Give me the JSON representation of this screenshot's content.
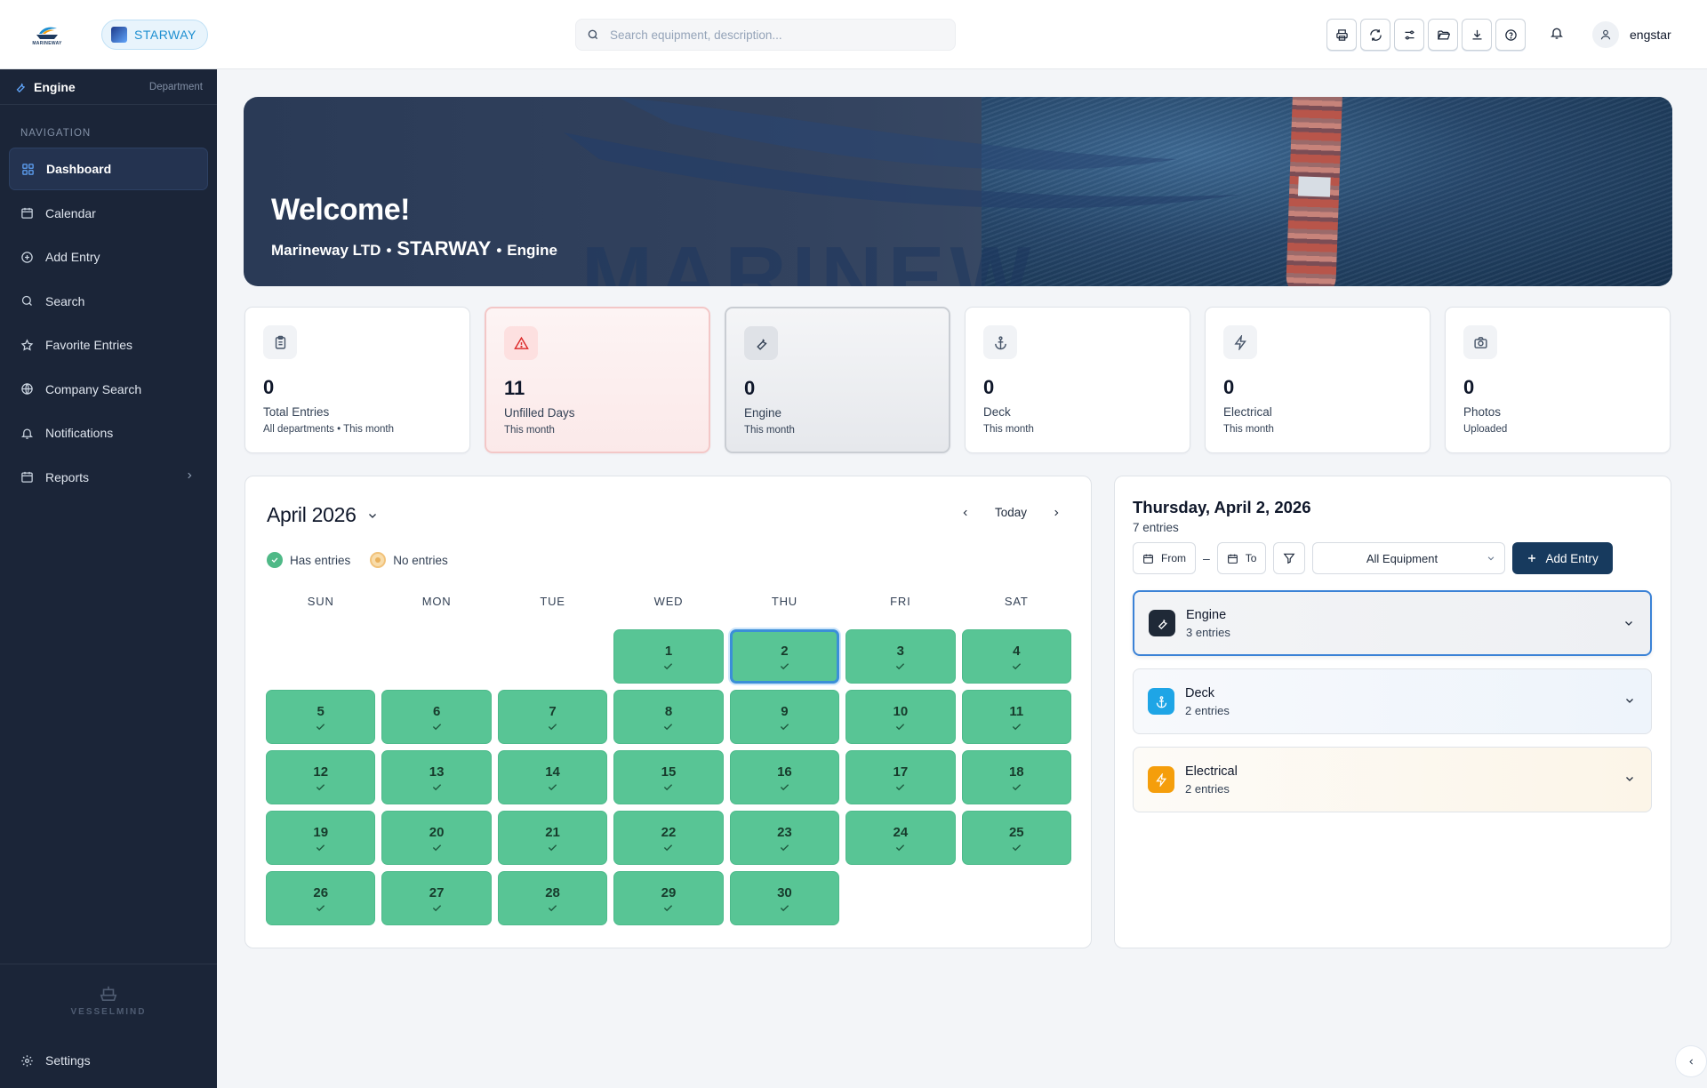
{
  "header": {
    "logo_text": "MARINEWAY",
    "vessel_chip": "STARWAY",
    "search_placeholder": "Search equipment, description...",
    "toolbar": [
      "printer-icon",
      "refresh-icon",
      "sliders-icon",
      "folder-open-icon",
      "download-icon",
      "help-icon"
    ],
    "username": "engstar"
  },
  "sidebar": {
    "department": "Engine",
    "department_label": "Department",
    "nav_label": "NAVIGATION",
    "items": [
      {
        "label": "Dashboard",
        "icon": "grid-icon",
        "active": true
      },
      {
        "label": "Calendar",
        "icon": "calendar-icon"
      },
      {
        "label": "Add Entry",
        "icon": "plus-circle-icon"
      },
      {
        "label": "Search",
        "icon": "search-icon"
      },
      {
        "label": "Favorite Entries",
        "icon": "star-icon"
      },
      {
        "label": "Company Search",
        "icon": "globe-icon"
      },
      {
        "label": "Notifications",
        "icon": "bell-icon"
      },
      {
        "label": "Reports",
        "icon": "calendar-icon",
        "has_submenu": true
      }
    ],
    "brand": "VESSELMIND",
    "settings_label": "Settings"
  },
  "hero": {
    "title": "Welcome!",
    "company": "Marineway LTD",
    "vessel": "STARWAY",
    "department": "Engine",
    "watermark": "MARINEW"
  },
  "stats": [
    {
      "value": "0",
      "label": "Total Entries",
      "sub": "All departments • This month",
      "icon": "clipboard-icon"
    },
    {
      "value": "11",
      "label": "Unfilled Days",
      "sub": "This month",
      "icon": "alert-triangle-icon"
    },
    {
      "value": "0",
      "label": "Engine",
      "sub": "This month",
      "icon": "wrench-icon"
    },
    {
      "value": "0",
      "label": "Deck",
      "sub": "This month",
      "icon": "anchor-icon"
    },
    {
      "value": "0",
      "label": "Electrical",
      "sub": "This month",
      "icon": "zap-icon"
    },
    {
      "value": "0",
      "label": "Photos",
      "sub": "Uploaded",
      "icon": "camera-icon"
    }
  ],
  "calendar": {
    "month_label": "April 2026",
    "today_label": "Today",
    "legend_has": "Has entries",
    "legend_none": "No entries",
    "weekdays": [
      "SUN",
      "MON",
      "TUE",
      "WED",
      "THU",
      "FRI",
      "SAT"
    ],
    "first_weekday_offset": 3,
    "days": [
      "1",
      "2",
      "3",
      "4",
      "5",
      "6",
      "7",
      "8",
      "9",
      "10",
      "11",
      "12",
      "13",
      "14",
      "15",
      "16",
      "17",
      "18",
      "19",
      "20",
      "21",
      "22",
      "23",
      "24",
      "25",
      "26",
      "27",
      "28",
      "29",
      "30"
    ],
    "selected_day": "2"
  },
  "detail": {
    "date": "Thursday, April 2, 2026",
    "count": "7 entries",
    "from_label": "From",
    "to_label": "To",
    "dash": "–",
    "equipment_filter": "All Equipment",
    "add_entry": "Add Entry",
    "groups": [
      {
        "title": "Engine",
        "count": "3 entries",
        "icon": "wrench-icon",
        "color": "#1f2937"
      },
      {
        "title": "Deck",
        "count": "2 entries",
        "icon": "anchor-icon",
        "color": "#1ea5e6"
      },
      {
        "title": "Electrical",
        "count": "2 entries",
        "icon": "zap-icon",
        "color": "#f59e0b"
      }
    ]
  },
  "colors": {
    "sidebar_bg": "#1b2538",
    "day_has_entries": "#58c595",
    "accent_blue": "#3b82d6",
    "add_entry_bg": "#173a5e"
  }
}
